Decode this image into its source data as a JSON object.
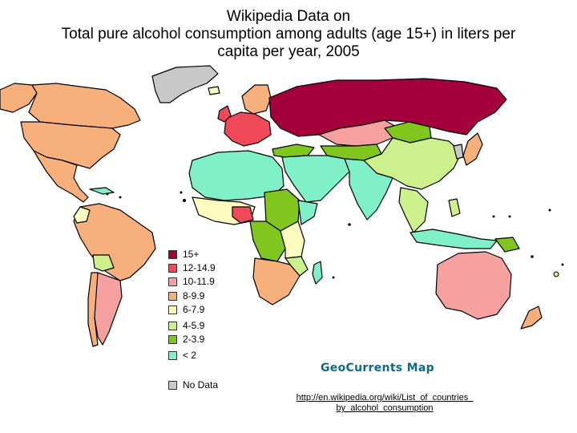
{
  "title": {
    "line1": "Wikipedia Data on",
    "line2": "Total pure alcohol consumption among adults (age 15+) in liters per",
    "line3": "capita per year, 2005"
  },
  "legend": [
    {
      "label": "15+",
      "color": "#a3003c"
    },
    {
      "label": "12-14.9",
      "color": "#f04a5a"
    },
    {
      "label": "10-11.9",
      "color": "#f7a0a0"
    },
    {
      "label": "8-9.9",
      "color": "#f7b07c"
    },
    {
      "label": "6-7.9",
      "color": "#fcfcc0"
    },
    {
      "label": "4-5.9",
      "color": "#ccf08c"
    },
    {
      "label": "2-3.9",
      "color": "#80c61e"
    },
    {
      "label": "< 2",
      "color": "#80f0c8"
    }
  ],
  "no_data": {
    "label": "No Data",
    "color": "#c8c8c8"
  },
  "brand": "GeoCurrents Map",
  "source": {
    "line1": "http://en.wikipedia.org/wiki/List_of_countries_",
    "line2": "by_alcohol_consumption"
  },
  "colors": {
    "ocean": "#ffffff",
    "border": "#000000"
  }
}
